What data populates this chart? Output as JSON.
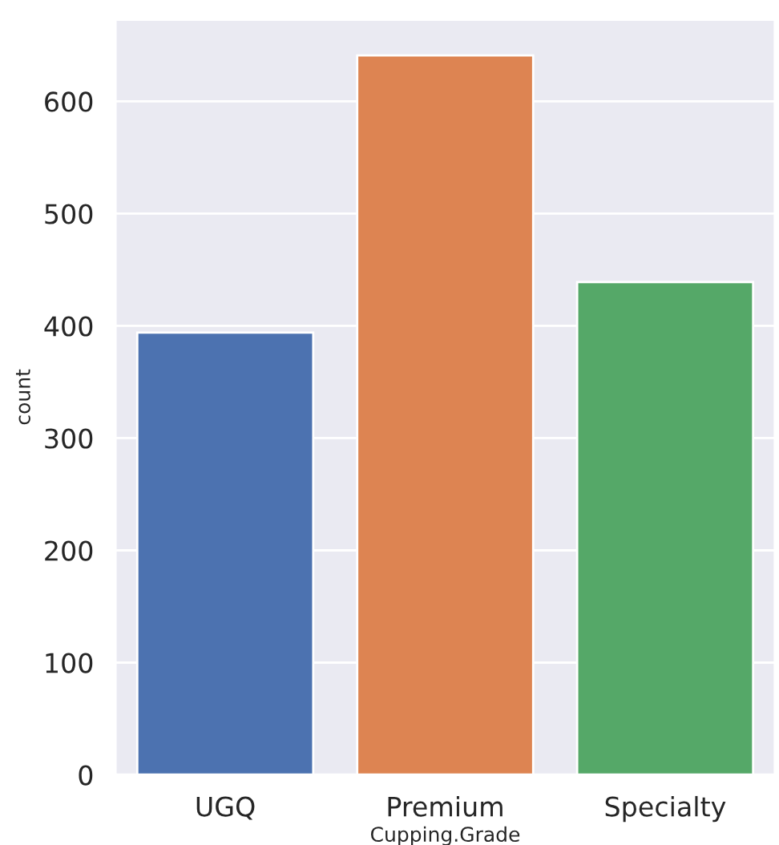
{
  "chart_data": {
    "type": "bar",
    "categories": [
      "UGQ",
      "Premium",
      "Specialty"
    ],
    "values": [
      394,
      641,
      439
    ],
    "colors": [
      "#4c72b0",
      "#dd8452",
      "#55a868"
    ],
    "xlabel": "Cupping.Grade",
    "ylabel": "count",
    "ylim": [
      0,
      673
    ],
    "yticks": [
      0,
      100,
      200,
      300,
      400,
      500,
      600
    ],
    "grid": "y",
    "legend": false
  }
}
